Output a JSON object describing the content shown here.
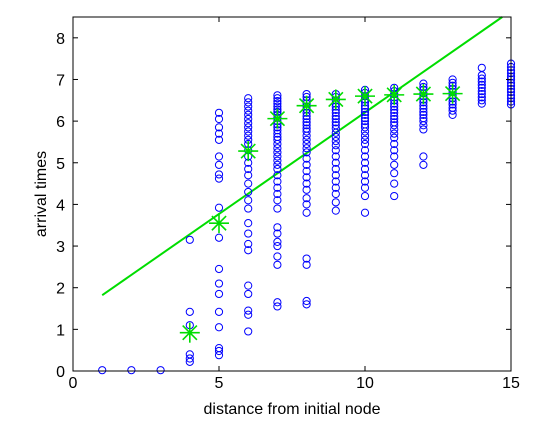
{
  "chart_data": {
    "type": "scatter",
    "xlabel": "distance from initial node",
    "ylabel": "arrival times",
    "xlim": [
      0,
      15
    ],
    "ylim": [
      0,
      8.5
    ],
    "xticks": [
      0,
      5,
      10,
      15
    ],
    "yticks": [
      0,
      1,
      2,
      3,
      4,
      5,
      6,
      7,
      8
    ],
    "grid": false,
    "legend": "none",
    "colors": {
      "scatter": "#0000ff",
      "mean": "#00dd00",
      "fit": "#00dd00"
    },
    "series": [
      {
        "type": "scatter",
        "marker": "circle",
        "points": [
          [
            1,
            0.02
          ],
          [
            2,
            0.02
          ],
          [
            3,
            0.02
          ],
          [
            4,
            3.15
          ],
          [
            4,
            1.42
          ],
          [
            4,
            1.1
          ],
          [
            4,
            0.4
          ],
          [
            4,
            0.3
          ],
          [
            4,
            0.22
          ],
          [
            5,
            6.2
          ],
          [
            5,
            6.05
          ],
          [
            5,
            5.85
          ],
          [
            5,
            5.7
          ],
          [
            5,
            5.55
          ],
          [
            5,
            5.15
          ],
          [
            5,
            4.95
          ],
          [
            5,
            4.72
          ],
          [
            5,
            4.62
          ],
          [
            5,
            3.92
          ],
          [
            5,
            3.2
          ],
          [
            5,
            2.45
          ],
          [
            5,
            2.1
          ],
          [
            5,
            1.85
          ],
          [
            5,
            1.42
          ],
          [
            5,
            1.05
          ],
          [
            5,
            0.55
          ],
          [
            5,
            0.48
          ],
          [
            5,
            0.38
          ],
          [
            6,
            6.55
          ],
          [
            6,
            6.45
          ],
          [
            6,
            6.35
          ],
          [
            6,
            6.25
          ],
          [
            6,
            6.15
          ],
          [
            6,
            6.05
          ],
          [
            6,
            5.95
          ],
          [
            6,
            5.85
          ],
          [
            6,
            5.75
          ],
          [
            6,
            5.65
          ],
          [
            6,
            5.55
          ],
          [
            6,
            5.45
          ],
          [
            6,
            5.3
          ],
          [
            6,
            5.15
          ],
          [
            6,
            5.0
          ],
          [
            6,
            4.85
          ],
          [
            6,
            4.7
          ],
          [
            6,
            4.5
          ],
          [
            6,
            4.3
          ],
          [
            6,
            4.1
          ],
          [
            6,
            3.9
          ],
          [
            6,
            3.55
          ],
          [
            6,
            3.3
          ],
          [
            6,
            3.05
          ],
          [
            6,
            2.9
          ],
          [
            6,
            2.05
          ],
          [
            6,
            1.85
          ],
          [
            6,
            1.45
          ],
          [
            6,
            1.35
          ],
          [
            6,
            0.95
          ],
          [
            7,
            6.62
          ],
          [
            7,
            6.55
          ],
          [
            7,
            6.48
          ],
          [
            7,
            6.42
          ],
          [
            7,
            6.35
          ],
          [
            7,
            6.28
          ],
          [
            7,
            6.22
          ],
          [
            7,
            6.15
          ],
          [
            7,
            6.08
          ],
          [
            7,
            6.0
          ],
          [
            7,
            5.92
          ],
          [
            7,
            5.85
          ],
          [
            7,
            5.78
          ],
          [
            7,
            5.7
          ],
          [
            7,
            5.62
          ],
          [
            7,
            5.55
          ],
          [
            7,
            5.45
          ],
          [
            7,
            5.35
          ],
          [
            7,
            5.25
          ],
          [
            7,
            5.15
          ],
          [
            7,
            5.05
          ],
          [
            7,
            4.95
          ],
          [
            7,
            4.85
          ],
          [
            7,
            4.7
          ],
          [
            7,
            4.55
          ],
          [
            7,
            4.4
          ],
          [
            7,
            4.25
          ],
          [
            7,
            4.1
          ],
          [
            7,
            3.9
          ],
          [
            7,
            3.45
          ],
          [
            7,
            3.3
          ],
          [
            7,
            3.1
          ],
          [
            7,
            3.0
          ],
          [
            7,
            2.75
          ],
          [
            7,
            2.55
          ],
          [
            7,
            1.65
          ],
          [
            7,
            1.55
          ],
          [
            8,
            6.65
          ],
          [
            8,
            6.58
          ],
          [
            8,
            6.5
          ],
          [
            8,
            6.42
          ],
          [
            8,
            6.35
          ],
          [
            8,
            6.28
          ],
          [
            8,
            6.2
          ],
          [
            8,
            6.12
          ],
          [
            8,
            6.05
          ],
          [
            8,
            5.97
          ],
          [
            8,
            5.9
          ],
          [
            8,
            5.82
          ],
          [
            8,
            5.75
          ],
          [
            8,
            5.65
          ],
          [
            8,
            5.55
          ],
          [
            8,
            5.45
          ],
          [
            8,
            5.35
          ],
          [
            8,
            5.25
          ],
          [
            8,
            5.1
          ],
          [
            8,
            4.95
          ],
          [
            8,
            4.8
          ],
          [
            8,
            4.65
          ],
          [
            8,
            4.5
          ],
          [
            8,
            4.35
          ],
          [
            8,
            4.15
          ],
          [
            8,
            4.0
          ],
          [
            8,
            3.8
          ],
          [
            8,
            2.7
          ],
          [
            8,
            2.55
          ],
          [
            8,
            1.68
          ],
          [
            8,
            1.6
          ],
          [
            9,
            6.65
          ],
          [
            9,
            6.58
          ],
          [
            9,
            6.5
          ],
          [
            9,
            6.42
          ],
          [
            9,
            6.35
          ],
          [
            9,
            6.27
          ],
          [
            9,
            6.2
          ],
          [
            9,
            6.12
          ],
          [
            9,
            6.05
          ],
          [
            9,
            5.97
          ],
          [
            9,
            5.9
          ],
          [
            9,
            5.82
          ],
          [
            9,
            5.72
          ],
          [
            9,
            5.62
          ],
          [
            9,
            5.52
          ],
          [
            9,
            5.42
          ],
          [
            9,
            5.3
          ],
          [
            9,
            5.15
          ],
          [
            9,
            5.0
          ],
          [
            9,
            4.85
          ],
          [
            9,
            4.7
          ],
          [
            9,
            4.55
          ],
          [
            9,
            4.4
          ],
          [
            9,
            4.25
          ],
          [
            9,
            4.05
          ],
          [
            9,
            3.85
          ],
          [
            10,
            6.75
          ],
          [
            10,
            6.68
          ],
          [
            10,
            6.6
          ],
          [
            10,
            6.52
          ],
          [
            10,
            6.45
          ],
          [
            10,
            6.37
          ],
          [
            10,
            6.3
          ],
          [
            10,
            6.22
          ],
          [
            10,
            6.15
          ],
          [
            10,
            6.07
          ],
          [
            10,
            6.0
          ],
          [
            10,
            5.92
          ],
          [
            10,
            5.85
          ],
          [
            10,
            5.75
          ],
          [
            10,
            5.65
          ],
          [
            10,
            5.55
          ],
          [
            10,
            5.45
          ],
          [
            10,
            5.3
          ],
          [
            10,
            5.15
          ],
          [
            10,
            5.0
          ],
          [
            10,
            4.85
          ],
          [
            10,
            4.7
          ],
          [
            10,
            4.55
          ],
          [
            10,
            4.4
          ],
          [
            10,
            4.2
          ],
          [
            10,
            3.8
          ],
          [
            11,
            6.8
          ],
          [
            11,
            6.72
          ],
          [
            11,
            6.65
          ],
          [
            11,
            6.57
          ],
          [
            11,
            6.5
          ],
          [
            11,
            6.42
          ],
          [
            11,
            6.35
          ],
          [
            11,
            6.27
          ],
          [
            11,
            6.2
          ],
          [
            11,
            6.12
          ],
          [
            11,
            6.05
          ],
          [
            11,
            5.97
          ],
          [
            11,
            5.9
          ],
          [
            11,
            5.8
          ],
          [
            11,
            5.7
          ],
          [
            11,
            5.6
          ],
          [
            11,
            5.45
          ],
          [
            11,
            5.3
          ],
          [
            11,
            5.15
          ],
          [
            11,
            4.95
          ],
          [
            11,
            4.75
          ],
          [
            11,
            4.5
          ],
          [
            11,
            4.2
          ],
          [
            12,
            6.9
          ],
          [
            12,
            6.82
          ],
          [
            12,
            6.75
          ],
          [
            12,
            6.67
          ],
          [
            12,
            6.6
          ],
          [
            12,
            6.52
          ],
          [
            12,
            6.45
          ],
          [
            12,
            6.37
          ],
          [
            12,
            6.3
          ],
          [
            12,
            6.22
          ],
          [
            12,
            6.15
          ],
          [
            12,
            6.07
          ],
          [
            12,
            6.0
          ],
          [
            12,
            5.9
          ],
          [
            12,
            5.8
          ],
          [
            12,
            5.15
          ],
          [
            12,
            4.95
          ],
          [
            13,
            7.0
          ],
          [
            13,
            6.92
          ],
          [
            13,
            6.85
          ],
          [
            13,
            6.77
          ],
          [
            13,
            6.7
          ],
          [
            13,
            6.62
          ],
          [
            13,
            6.55
          ],
          [
            13,
            6.47
          ],
          [
            13,
            6.4
          ],
          [
            13,
            6.32
          ],
          [
            13,
            6.25
          ],
          [
            13,
            6.15
          ],
          [
            14,
            7.28
          ],
          [
            14,
            7.1
          ],
          [
            14,
            7.02
          ],
          [
            14,
            6.95
          ],
          [
            14,
            6.87
          ],
          [
            14,
            6.8
          ],
          [
            14,
            6.72
          ],
          [
            14,
            6.65
          ],
          [
            14,
            6.57
          ],
          [
            14,
            6.5
          ],
          [
            14,
            6.42
          ],
          [
            15,
            7.38
          ],
          [
            15,
            7.3
          ],
          [
            15,
            7.22
          ],
          [
            15,
            7.15
          ],
          [
            15,
            7.07
          ],
          [
            15,
            7.0
          ],
          [
            15,
            6.92
          ],
          [
            15,
            6.85
          ],
          [
            15,
            6.77
          ],
          [
            15,
            6.7
          ],
          [
            15,
            6.62
          ],
          [
            15,
            6.55
          ],
          [
            15,
            6.47
          ],
          [
            15,
            6.4
          ]
        ]
      },
      {
        "type": "scatter",
        "marker": "asterisk",
        "points": [
          [
            4,
            0.92
          ],
          [
            5,
            3.55
          ],
          [
            6,
            5.28
          ],
          [
            7,
            6.06
          ],
          [
            8,
            6.37
          ],
          [
            9,
            6.52
          ],
          [
            10,
            6.6
          ],
          [
            11,
            6.63
          ],
          [
            12,
            6.65
          ],
          [
            13,
            6.66
          ]
        ]
      },
      {
        "type": "line",
        "points": [
          [
            1,
            1.82
          ],
          [
            14.7,
            8.5
          ]
        ]
      }
    ]
  }
}
